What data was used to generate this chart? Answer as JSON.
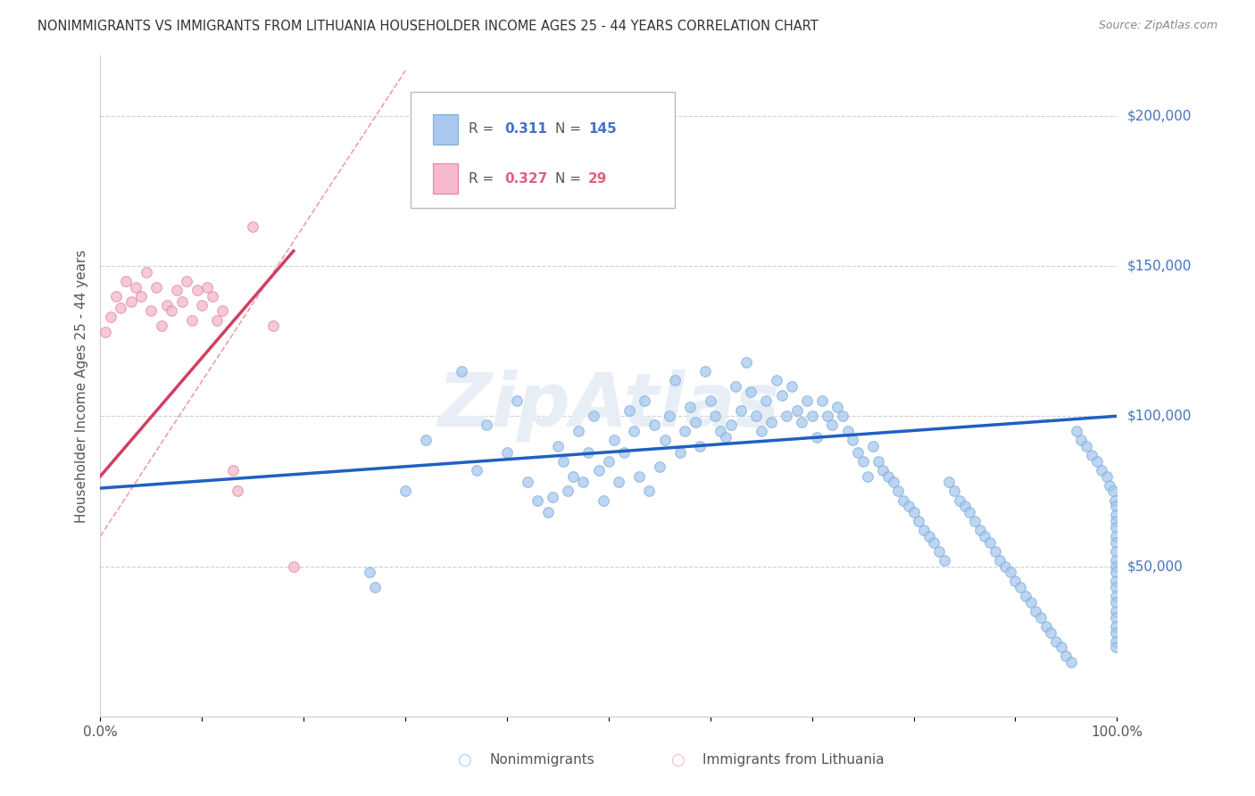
{
  "title": "NONIMMIGRANTS VS IMMIGRANTS FROM LITHUANIA HOUSEHOLDER INCOME AGES 25 - 44 YEARS CORRELATION CHART",
  "source": "Source: ZipAtlas.com",
  "ylabel": "Householder Income Ages 25 - 44 years",
  "xlim": [
    0,
    1.0
  ],
  "ylim": [
    0,
    220000
  ],
  "xticks": [
    0.0,
    0.1,
    0.2,
    0.3,
    0.4,
    0.5,
    0.6,
    0.7,
    0.8,
    0.9,
    1.0
  ],
  "xticklabels": [
    "0.0%",
    "",
    "",
    "",
    "",
    "",
    "",
    "",
    "",
    "",
    "100.0%"
  ],
  "ytick_values": [
    50000,
    100000,
    150000,
    200000
  ],
  "ytick_labels": [
    "$50,000",
    "$100,000",
    "$150,000",
    "$200,000"
  ],
  "nonimmigrant_R": 0.311,
  "nonimmigrant_N": 145,
  "immigrant_R": 0.327,
  "immigrant_N": 29,
  "nonimmigrant_color": "#a8c8f0",
  "nonimmigrant_edge_color": "#7bafd4",
  "nonimmigrant_line_color": "#2060c0",
  "immigrant_color": "#f5b8cc",
  "immigrant_edge_color": "#e085a0",
  "immigrant_line_color": "#d04060",
  "diagonal_color": "#e8a0b0",
  "watermark": "ZipAtlas",
  "legend_R_color_nonimm": "#4472c4",
  "legend_R_color_imm": "#e06080",
  "nonimmigrant_scatter_x": [
    0.265,
    0.27,
    0.3,
    0.32,
    0.355,
    0.37,
    0.38,
    0.4,
    0.41,
    0.42,
    0.43,
    0.44,
    0.445,
    0.45,
    0.455,
    0.46,
    0.465,
    0.47,
    0.475,
    0.48,
    0.485,
    0.49,
    0.495,
    0.5,
    0.505,
    0.51,
    0.515,
    0.52,
    0.525,
    0.53,
    0.535,
    0.54,
    0.545,
    0.55,
    0.555,
    0.56,
    0.565,
    0.57,
    0.575,
    0.58,
    0.585,
    0.59,
    0.595,
    0.6,
    0.605,
    0.61,
    0.615,
    0.62,
    0.625,
    0.63,
    0.635,
    0.64,
    0.645,
    0.65,
    0.655,
    0.66,
    0.665,
    0.67,
    0.675,
    0.68,
    0.685,
    0.69,
    0.695,
    0.7,
    0.705,
    0.71,
    0.715,
    0.72,
    0.725,
    0.73,
    0.735,
    0.74,
    0.745,
    0.75,
    0.755,
    0.76,
    0.765,
    0.77,
    0.775,
    0.78,
    0.785,
    0.79,
    0.795,
    0.8,
    0.805,
    0.81,
    0.815,
    0.82,
    0.825,
    0.83,
    0.835,
    0.84,
    0.845,
    0.85,
    0.855,
    0.86,
    0.865,
    0.87,
    0.875,
    0.88,
    0.885,
    0.89,
    0.895,
    0.9,
    0.905,
    0.91,
    0.915,
    0.92,
    0.925,
    0.93,
    0.935,
    0.94,
    0.945,
    0.95,
    0.955,
    0.96,
    0.965,
    0.97,
    0.975,
    0.98,
    0.985,
    0.99,
    0.993,
    0.996,
    0.998,
    0.999,
    0.999,
    0.999,
    0.999,
    0.999,
    0.999,
    0.999,
    0.999,
    0.999,
    0.999,
    0.999,
    0.999,
    0.999,
    0.999,
    0.999,
    0.999,
    0.999,
    0.999,
    0.999,
    0.999
  ],
  "nonimmigrant_scatter_y": [
    48000,
    43000,
    75000,
    92000,
    115000,
    82000,
    97000,
    88000,
    105000,
    78000,
    72000,
    68000,
    73000,
    90000,
    85000,
    75000,
    80000,
    95000,
    78000,
    88000,
    100000,
    82000,
    72000,
    85000,
    92000,
    78000,
    88000,
    102000,
    95000,
    80000,
    105000,
    75000,
    97000,
    83000,
    92000,
    100000,
    112000,
    88000,
    95000,
    103000,
    98000,
    90000,
    115000,
    105000,
    100000,
    95000,
    93000,
    97000,
    110000,
    102000,
    118000,
    108000,
    100000,
    95000,
    105000,
    98000,
    112000,
    107000,
    100000,
    110000,
    102000,
    98000,
    105000,
    100000,
    93000,
    105000,
    100000,
    97000,
    103000,
    100000,
    95000,
    92000,
    88000,
    85000,
    80000,
    90000,
    85000,
    82000,
    80000,
    78000,
    75000,
    72000,
    70000,
    68000,
    65000,
    62000,
    60000,
    58000,
    55000,
    52000,
    78000,
    75000,
    72000,
    70000,
    68000,
    65000,
    62000,
    60000,
    58000,
    55000,
    52000,
    50000,
    48000,
    45000,
    43000,
    40000,
    38000,
    35000,
    33000,
    30000,
    28000,
    25000,
    23000,
    20000,
    18000,
    95000,
    92000,
    90000,
    87000,
    85000,
    82000,
    80000,
    77000,
    75000,
    72000,
    70000,
    67000,
    65000,
    63000,
    60000,
    58000,
    55000,
    52000,
    50000,
    48000,
    45000,
    43000,
    40000,
    38000,
    35000,
    33000,
    30000,
    28000,
    25000,
    23000
  ],
  "immigrant_scatter_x": [
    0.005,
    0.01,
    0.015,
    0.02,
    0.025,
    0.03,
    0.035,
    0.04,
    0.045,
    0.05,
    0.055,
    0.06,
    0.065,
    0.07,
    0.075,
    0.08,
    0.085,
    0.09,
    0.095,
    0.1,
    0.105,
    0.11,
    0.115,
    0.12,
    0.13,
    0.135,
    0.15,
    0.17,
    0.19
  ],
  "immigrant_scatter_y": [
    128000,
    133000,
    140000,
    136000,
    145000,
    138000,
    143000,
    140000,
    148000,
    135000,
    143000,
    130000,
    137000,
    135000,
    142000,
    138000,
    145000,
    132000,
    142000,
    137000,
    143000,
    140000,
    132000,
    135000,
    82000,
    75000,
    163000,
    130000,
    50000
  ],
  "nonimm_line_x": [
    0.0,
    1.0
  ],
  "nonimm_line_y": [
    76000,
    100000
  ],
  "imm_line_x": [
    0.0,
    0.19
  ],
  "imm_line_y": [
    80000,
    155000
  ],
  "diag_line_x": [
    0.0,
    0.3
  ],
  "diag_line_y": [
    60000,
    215000
  ]
}
